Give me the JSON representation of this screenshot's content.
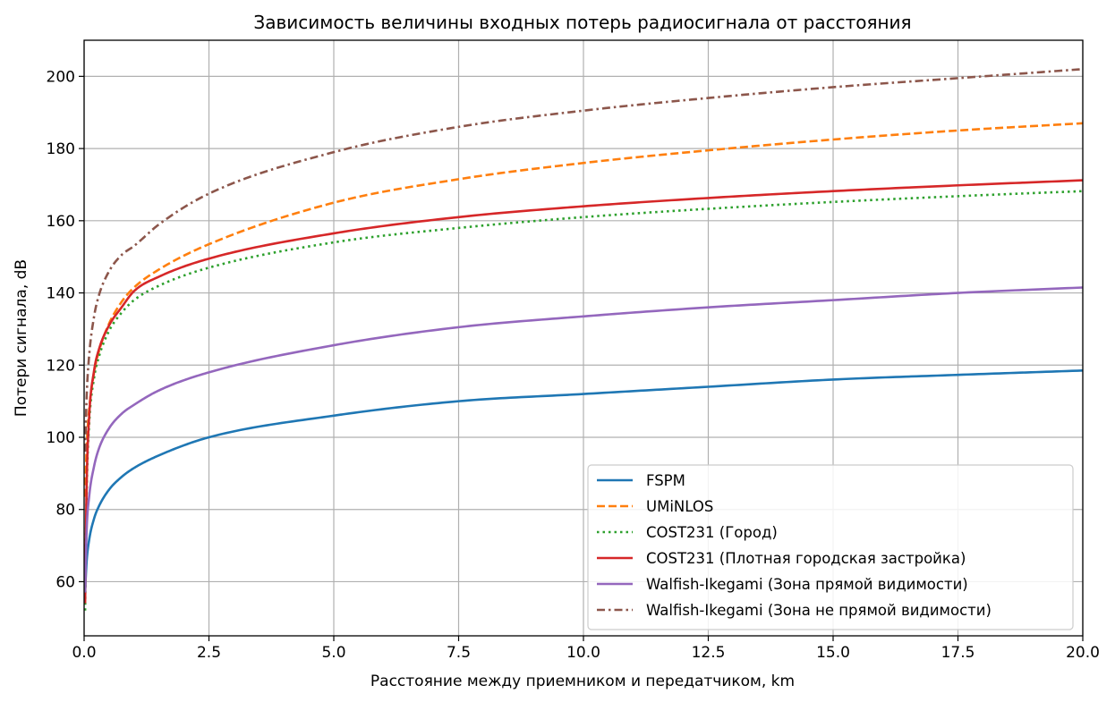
{
  "chart_data": {
    "type": "line",
    "title": "Зависимость величины входных потерь радиосигнала от расстояния",
    "xlabel": "Расстояние между приемником и передатчиком, km",
    "ylabel": "Потери сигнала, dB",
    "xlim": [
      0,
      20
    ],
    "ylim": [
      45,
      210
    ],
    "xticks": [
      0,
      2.5,
      5,
      7.5,
      10,
      12.5,
      15,
      17.5,
      20
    ],
    "xtick_labels": [
      "0.0",
      "2.5",
      "5.0",
      "7.5",
      "10.0",
      "12.5",
      "15.0",
      "17.5",
      "20.0"
    ],
    "yticks": [
      60,
      80,
      100,
      120,
      140,
      160,
      180,
      200
    ],
    "ytick_labels": [
      "60",
      "80",
      "100",
      "120",
      "140",
      "160",
      "180",
      "200"
    ],
    "grid": true,
    "legend_position": "bottom-right",
    "series": [
      {
        "name": "FSPM",
        "color": "#1f77b4",
        "dash": "solid",
        "x": [
          0.02,
          0.05,
          0.1,
          0.2,
          0.3,
          0.5,
          0.75,
          1.0,
          1.5,
          2.5,
          5.0,
          7.5,
          10.0,
          12.5,
          15.0,
          17.5,
          20.0
        ],
        "y": [
          57.5,
          65.5,
          71.5,
          77.5,
          81.0,
          85.5,
          89.0,
          91.5,
          95.0,
          100.0,
          106.0,
          110.0,
          112.0,
          114.0,
          116.0,
          117.3,
          118.5
        ]
      },
      {
        "name": "UMiNLOS",
        "color": "#ff7f0e",
        "dash": "dashed",
        "x": [
          0.02,
          0.05,
          0.1,
          0.2,
          0.3,
          0.5,
          0.75,
          1.0,
          1.5,
          2.5,
          5.0,
          7.5,
          10.0,
          12.5,
          15.0,
          17.5,
          20.0
        ],
        "y": [
          83.5,
          97.0,
          107.5,
          118.0,
          124.0,
          131.5,
          137.5,
          141.5,
          146.5,
          153.5,
          165.0,
          171.5,
          176.0,
          179.5,
          182.5,
          185.0,
          187.0
        ]
      },
      {
        "name": "COST231 (Город)",
        "color": "#2ca02c",
        "dash": "dotted",
        "x": [
          0.02,
          0.05,
          0.1,
          0.2,
          0.3,
          0.5,
          0.75,
          1.0,
          1.5,
          2.5,
          5.0,
          7.5,
          10.0,
          12.5,
          15.0,
          17.5,
          20.0
        ],
        "y": [
          52.0,
          84.0,
          103.5,
          116.5,
          122.5,
          129.5,
          134.5,
          138.0,
          142.0,
          147.0,
          154.0,
          158.0,
          161.0,
          163.3,
          165.2,
          166.8,
          168.2
        ]
      },
      {
        "name": "COST231 (Плотная городская застройка)",
        "color": "#d62728",
        "dash": "solid",
        "x": [
          0.02,
          0.05,
          0.1,
          0.2,
          0.3,
          0.5,
          0.75,
          1.0,
          1.5,
          2.5,
          5.0,
          7.5,
          10.0,
          12.5,
          15.0,
          17.5,
          20.0
        ],
        "y": [
          54.0,
          86.0,
          105.5,
          118.5,
          124.5,
          131.0,
          136.0,
          140.5,
          144.5,
          149.5,
          156.5,
          161.0,
          164.0,
          166.3,
          168.2,
          169.8,
          171.2
        ]
      },
      {
        "name": "Walfish-Ikegami (Зона прямой видимости)",
        "color": "#9467bd",
        "dash": "solid",
        "x": [
          0.02,
          0.05,
          0.1,
          0.2,
          0.3,
          0.5,
          0.75,
          1.0,
          1.5,
          2.5,
          5.0,
          7.5,
          10.0,
          12.5,
          15.0,
          17.5,
          20.0
        ],
        "y": [
          57.0,
          74.0,
          83.5,
          92.0,
          97.0,
          102.5,
          106.5,
          109.0,
          113.0,
          118.0,
          125.5,
          130.5,
          133.5,
          136.0,
          138.0,
          140.0,
          141.5
        ]
      },
      {
        "name": "Walfish-Ikegami (Зона не прямой видимости)",
        "color": "#8c564b",
        "dash": "dashdot",
        "x": [
          0.02,
          0.05,
          0.1,
          0.2,
          0.3,
          0.5,
          0.75,
          1.0,
          1.5,
          2.5,
          5.0,
          7.5,
          10.0,
          12.5,
          15.0,
          17.5,
          20.0
        ],
        "y": [
          96.0,
          111.0,
          122.5,
          133.5,
          139.5,
          146.0,
          150.5,
          153.0,
          159.0,
          167.5,
          179.0,
          186.0,
          190.5,
          194.0,
          197.0,
          199.5,
          202.0
        ]
      }
    ]
  }
}
